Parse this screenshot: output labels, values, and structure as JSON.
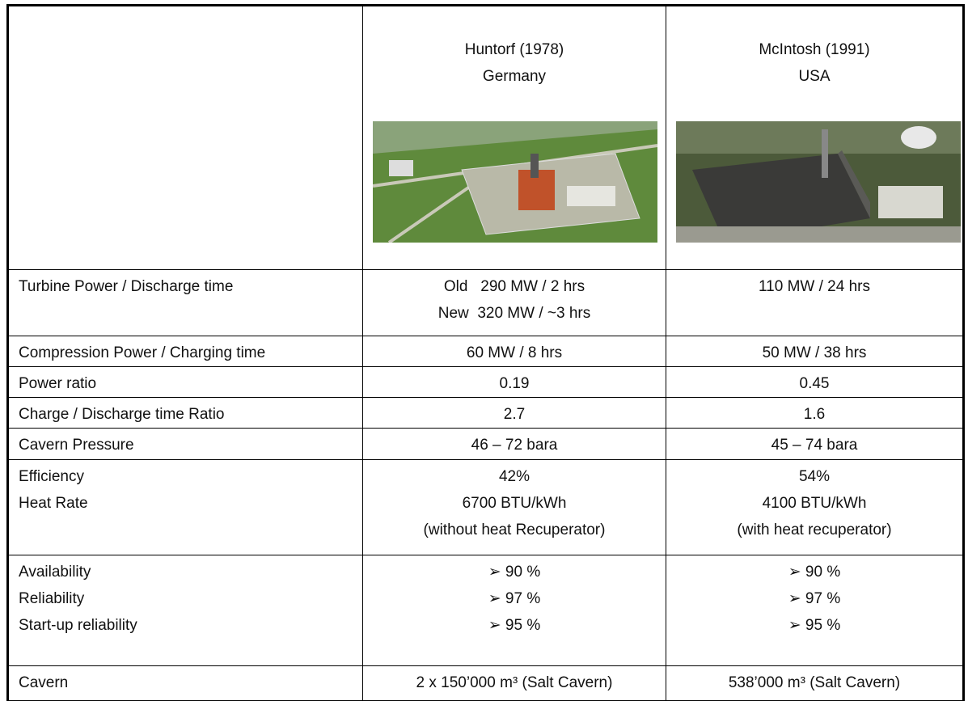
{
  "header": {
    "columns": [
      {
        "lines": [
          "Huntorf (1978)",
          "Germany"
        ]
      },
      {
        "lines": [
          "McIntosh (1991)",
          "USA"
        ]
      }
    ]
  },
  "rows": [
    {
      "label": [
        "Turbine Power / Discharge time"
      ],
      "values": [
        [
          "Old   290 MW / 2 hrs",
          "New  320 MW / ~3 hrs"
        ],
        [
          "110 MW / 24 hrs"
        ]
      ]
    },
    {
      "label": [
        "Compression Power / Charging time"
      ],
      "values": [
        [
          "60 MW / 8 hrs"
        ],
        [
          "50 MW / 38 hrs"
        ]
      ]
    },
    {
      "label": [
        "Power ratio"
      ],
      "values": [
        [
          "0.19"
        ],
        [
          "0.45"
        ]
      ]
    },
    {
      "label": [
        "Charge / Discharge time Ratio"
      ],
      "values": [
        [
          "2.7"
        ],
        [
          "1.6"
        ]
      ]
    },
    {
      "label": [
        "Cavern Pressure"
      ],
      "values": [
        [
          "46 – 72 bara"
        ],
        [
          "45 – 74 bara"
        ]
      ]
    },
    {
      "label": [
        "Efficiency",
        "Heat Rate"
      ],
      "values": [
        [
          "42%",
          "6700 BTU/kWh",
          "(without heat Recuperator)"
        ],
        [
          "54%",
          "4100 BTU/kWh",
          "(with heat recuperator)"
        ]
      ]
    },
    {
      "label": [
        "Availability",
        "Reliability",
        "Start-up reliability"
      ],
      "values": [
        [
          "➢ 90 %",
          "➢ 97 %",
          "➢ 95 %"
        ],
        [
          "➢ 90 %",
          "➢ 97 %",
          "➢ 95 %"
        ]
      ]
    },
    {
      "label": [
        "Cavern"
      ],
      "values": [
        [
          "2 x 150’000 m³ (Salt Cavern)"
        ],
        [
          "538’000 m³ (Salt Cavern)"
        ]
      ]
    }
  ]
}
